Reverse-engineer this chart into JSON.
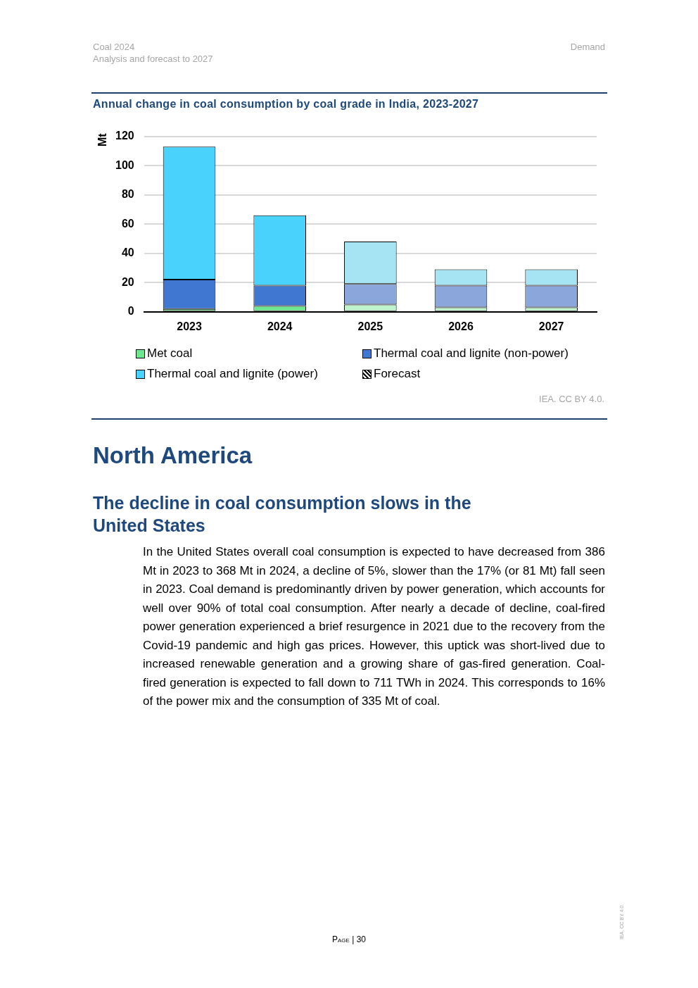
{
  "chart_data": {
    "type": "bar",
    "title": "Annual change in coal consumption by coal grade in India, 2023-2027",
    "ylabel": "Mt",
    "categories": [
      "2023",
      "2024",
      "2025",
      "2026",
      "2027"
    ],
    "stacked": true,
    "series": [
      {
        "name": "Met coal",
        "color": "#6ee88f",
        "colors": [
          "#6ee88f",
          "#6ee88f",
          "#bff3cc",
          "#bff3cc",
          "#bff3cc"
        ],
        "values": [
          2,
          4,
          5,
          3,
          3
        ]
      },
      {
        "name": "Thermal coal and lignite (non-power)",
        "color": "#3f77d1",
        "colors": [
          "#3f77d1",
          "#3f77d1",
          "#8aa6da",
          "#8aa6da",
          "#8aa6da"
        ],
        "values": [
          20,
          14,
          14,
          15,
          15
        ]
      },
      {
        "name": "Thermal coal and lignite (power)",
        "color": "#48d2fc",
        "colors": [
          "#48d2fc",
          "#48d2fc",
          "#a6e3f3",
          "#a6e3f3",
          "#a6e3f3"
        ],
        "values": [
          91,
          48,
          29,
          11,
          11
        ]
      }
    ],
    "ylim": [
      0,
      120
    ],
    "yticks": [
      0,
      20,
      40,
      60,
      80,
      100,
      120
    ],
    "grid": "y",
    "legend": "bottom",
    "annotations": [
      "Coal 2024",
      "Analysis and forecast to 2027",
      "Demand",
      "Forecast",
      "IEA. CC BY 4.0.",
      "North America",
      "The decline in coal consumption slows in the United States",
      "In the United States overall coal consumption is expected to have decreased from 386 Mt in 2023 to 368 Mt in 2024, a decline of 5%, slower than the 17% (or 81 Mt) fall seen in 2023. Coal demand is predominantly driven by power generation, which accounts for well over 90% of total coal consumption. After nearly a decade of decline, coal-fired power generation experienced a brief resurgence in 2021 due to the recovery from the Covid-19 pandemic and high gas prices. However, this uptick was short-lived due to increased renewable generation and a growing share of gas-fired generation. Coal-fired generation is expected to fall down to 711 TWh in 2024. This corresponds to 16% of the power mix and the consumption of 335 Mt of coal.",
      "Page | 30",
      "IEA. CC BY 4.0."
    ]
  }
}
